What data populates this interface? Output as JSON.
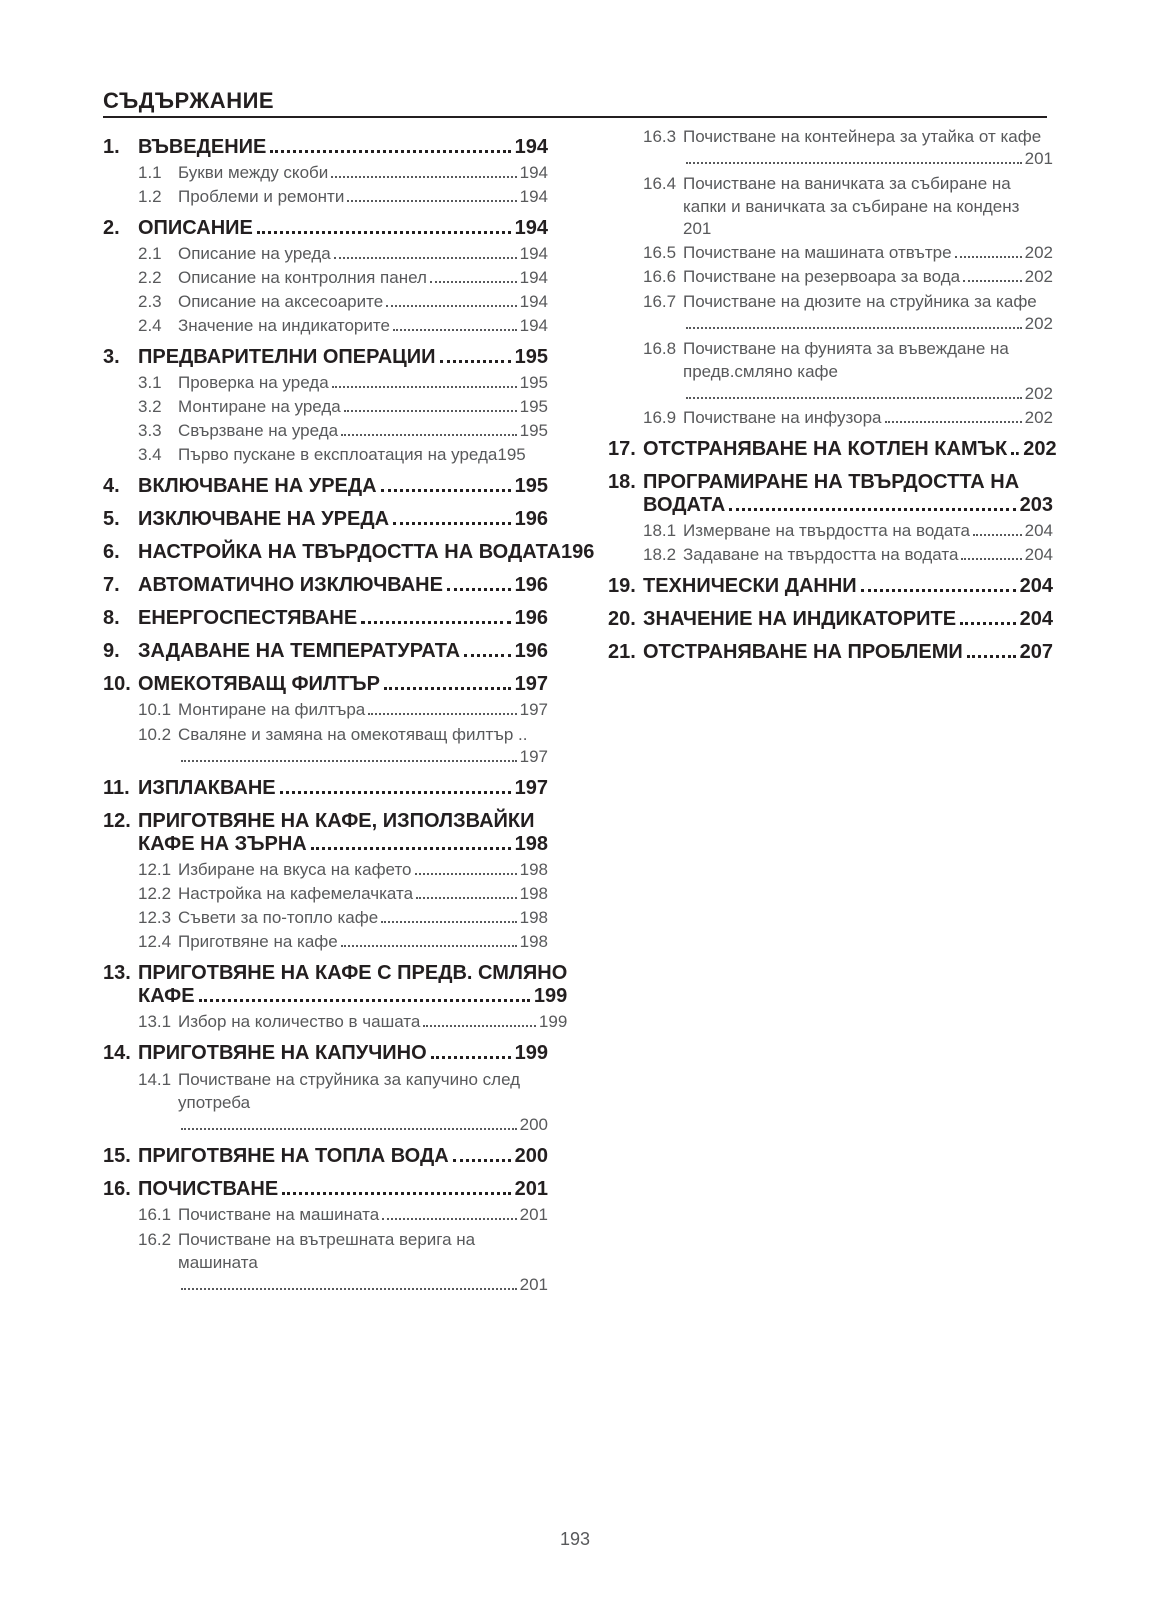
{
  "title": "СЪДЪРЖАНИЕ",
  "page_number": "193",
  "left_sections": [
    {
      "num": "1.",
      "title": "ВЪВЕДЕНИЕ",
      "page": "194",
      "subs": [
        {
          "n": "1.1",
          "t": "Букви между скоби",
          "p": "194"
        },
        {
          "n": "1.2",
          "t": "Проблеми и ремонти",
          "p": "194"
        }
      ]
    },
    {
      "num": "2.",
      "title": "ОПИСАНИЕ",
      "page": "194",
      "subs": [
        {
          "n": "2.1",
          "t": "Описание на уреда",
          "p": "194"
        },
        {
          "n": "2.2",
          "t": "Описание на контролния панел",
          "p": "194"
        },
        {
          "n": "2.3",
          "t": "Описание на аксесоарите",
          "p": "194"
        },
        {
          "n": "2.4",
          "t": "Значение на индикаторите",
          "p": "194"
        }
      ]
    },
    {
      "num": "3.",
      "title": "ПРЕДВАРИТЕЛНИ ОПЕРАЦИИ",
      "page": "195",
      "subs": [
        {
          "n": "3.1",
          "t": "Проверка на уреда",
          "p": "195"
        },
        {
          "n": "3.2",
          "t": "Монтиране на уреда",
          "p": "195"
        },
        {
          "n": "3.3",
          "t": "Свързване на уреда",
          "p": "195"
        },
        {
          "n": "3.4",
          "t": "Първо пускане в експлоатация на уреда",
          "p": "195",
          "tight": true
        }
      ]
    },
    {
      "num": "4.",
      "title": "ВКЛЮЧВАНЕ НА УРЕДА",
      "page": "195",
      "subs": []
    },
    {
      "num": "5.",
      "title": "ИЗКЛЮЧВАНЕ НА УРЕДА",
      "page": "196",
      "subs": []
    },
    {
      "num": "6.",
      "title": "НАСТРОЙКА НА ТВЪРДОСТТА НА ВОДАТА",
      "page": "196",
      "nodots": true,
      "subs": []
    },
    {
      "num": "7.",
      "title": "АВТОМАТИЧНО ИЗКЛЮЧВАНЕ",
      "page": "196",
      "subs": []
    },
    {
      "num": "8.",
      "title": "ЕНЕРГОСПЕСТЯВАНЕ",
      "page": "196",
      "subs": []
    },
    {
      "num": "9.",
      "title": "ЗАДАВАНЕ НА ТЕМПЕРАТУРАТА",
      "page": "196",
      "subs": []
    },
    {
      "num": "10.",
      "title": "ОМЕКОТЯВАЩ ФИЛТЪР",
      "page": "197",
      "subs": [
        {
          "n": "10.1",
          "t": "Монтиране на филтъра",
          "p": "197"
        },
        {
          "n": "10.2",
          "t": "Сваляне и замяна на омекотяващ филтър",
          "p": "197",
          "wrap": true,
          "trail": true
        }
      ]
    },
    {
      "num": "11.",
      "title": "ИЗПЛАКВАНЕ",
      "page": "197",
      "subs": []
    },
    {
      "num": "12.",
      "title_lines": [
        "ПРИГОТВЯНЕ НА КАФЕ, ИЗПОЛЗВАЙКИ",
        "КАФЕ НА ЗЪРНА"
      ],
      "page": "198",
      "subs": [
        {
          "n": "12.1",
          "t": "Избиране на вкуса на кафето",
          "p": "198"
        },
        {
          "n": "12.2",
          "t": "Настройка на кафемелачката",
          "p": "198"
        },
        {
          "n": "12.3",
          "t": "Съвети за по-топло кафе",
          "p": "198"
        },
        {
          "n": "12.4",
          "t": "Приготвяне на кафе",
          "p": "198"
        }
      ]
    },
    {
      "num": "13.",
      "title_lines": [
        "ПРИГОТВЯНЕ НА КАФЕ С ПРЕДВ. СМЛЯНО",
        "КАФЕ"
      ],
      "page": "199",
      "subs": [
        {
          "n": "13.1",
          "t": "Избор на количество в чашата",
          "p": "199"
        }
      ]
    },
    {
      "num": "14.",
      "title": "ПРИГОТВЯНЕ НА КАПУЧИНО",
      "page": "199",
      "subs": [
        {
          "n": "14.1",
          "t": "Почистване на струйника за капучино след употреба",
          "p": "200",
          "wrap": true
        }
      ]
    },
    {
      "num": "15.",
      "title": "ПРИГОТВЯНЕ НА ТОПЛА ВОДА",
      "page": "200",
      "subs": []
    },
    {
      "num": "16.",
      "title": "ПОЧИСТВАНЕ",
      "page": "201",
      "subs": [
        {
          "n": "16.1",
          "t": "Почистване на машината",
          "p": "201"
        },
        {
          "n": "16.2",
          "t": "Почистване на вътрешната верига на машината",
          "p": "201",
          "wrap": true
        }
      ]
    }
  ],
  "right_continuation_subs": [
    {
      "n": "16.3",
      "t": "Почистване на контейнера за утайка от кафе",
      "p": "201",
      "wrap": true
    },
    {
      "n": "16.4",
      "t": "Почистване на ваничката за събиране на капки и ваничката за събиране на конденз",
      "p": "201",
      "wrap": true,
      "page_below": true
    },
    {
      "n": "16.5",
      "t": "Почистване на машината отвътре",
      "p": "202"
    },
    {
      "n": "16.6",
      "t": "Почистване на резервоара за вода",
      "p": "202"
    },
    {
      "n": "16.7",
      "t": "Почистване на дюзите на струйника за кафе",
      "p": "202",
      "wrap": true
    },
    {
      "n": "16.8",
      "t": "Почистване на фунията за въвеждане на предв.смляно кафе",
      "p": "202",
      "wrap": true
    },
    {
      "n": "16.9",
      "t": "Почистване на инфузора",
      "p": "202"
    }
  ],
  "right_sections": [
    {
      "num": "17.",
      "title": "ОТСТРАНЯВАНЕ НА КОТЛЕН КАМЪК",
      "page": "202",
      "subs": []
    },
    {
      "num": "18.",
      "title_lines": [
        "ПРОГРАМИРАНЕ НА ТВЪРДОСТТА НА",
        "ВОДАТА"
      ],
      "page": "203",
      "subs": [
        {
          "n": "18.1",
          "t": "Измерване на твърдостта на водата",
          "p": "204"
        },
        {
          "n": "18.2",
          "t": "Задаване на твърдостта на водата",
          "p": "204"
        }
      ]
    },
    {
      "num": "19.",
      "title": "ТЕХНИЧЕСКИ ДАННИ",
      "page": "204",
      "subs": []
    },
    {
      "num": "20.",
      "title": "ЗНАЧЕНИЕ НА ИНДИКАТОРИТЕ",
      "page": "204",
      "subs": []
    },
    {
      "num": "21.",
      "title": "ОТСТРАНЯВАНЕ НА ПРОБЛЕМИ",
      "page": "207",
      "subs": []
    }
  ]
}
